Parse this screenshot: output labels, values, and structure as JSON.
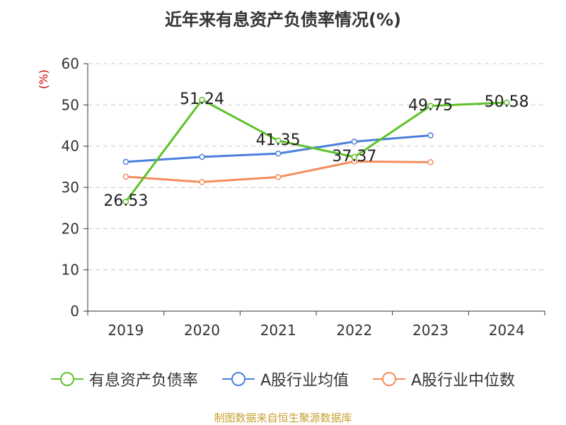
{
  "chart_data": {
    "type": "line",
    "title": "近年来有息资产负债率情况(%)",
    "ylabel": "(%)",
    "categories": [
      "2019",
      "2020",
      "2021",
      "2022",
      "2023",
      "2024"
    ],
    "ylim": [
      0,
      60
    ],
    "yticks": [
      0,
      10,
      20,
      30,
      40,
      50,
      60
    ],
    "grid": true,
    "legend_position": "bottom",
    "series": [
      {
        "name": "有息资产负债率",
        "color": "#5ec22a",
        "values": [
          26.53,
          51.24,
          41.35,
          37.37,
          49.75,
          50.58
        ],
        "labels": [
          "26.53",
          "51.24",
          "41.35",
          "37.37",
          "49.75",
          "50.58"
        ]
      },
      {
        "name": "A股行业均值",
        "color": "#4a7fdb",
        "values": [
          36.2,
          37.4,
          38.2,
          41.1,
          42.6,
          null
        ]
      },
      {
        "name": "A股行业中位数",
        "color": "#f58c5a",
        "values": [
          32.6,
          31.3,
          32.5,
          36.3,
          36.1,
          null
        ]
      }
    ]
  },
  "footer": {
    "source": "制图数据来自恒生聚源数据库"
  }
}
